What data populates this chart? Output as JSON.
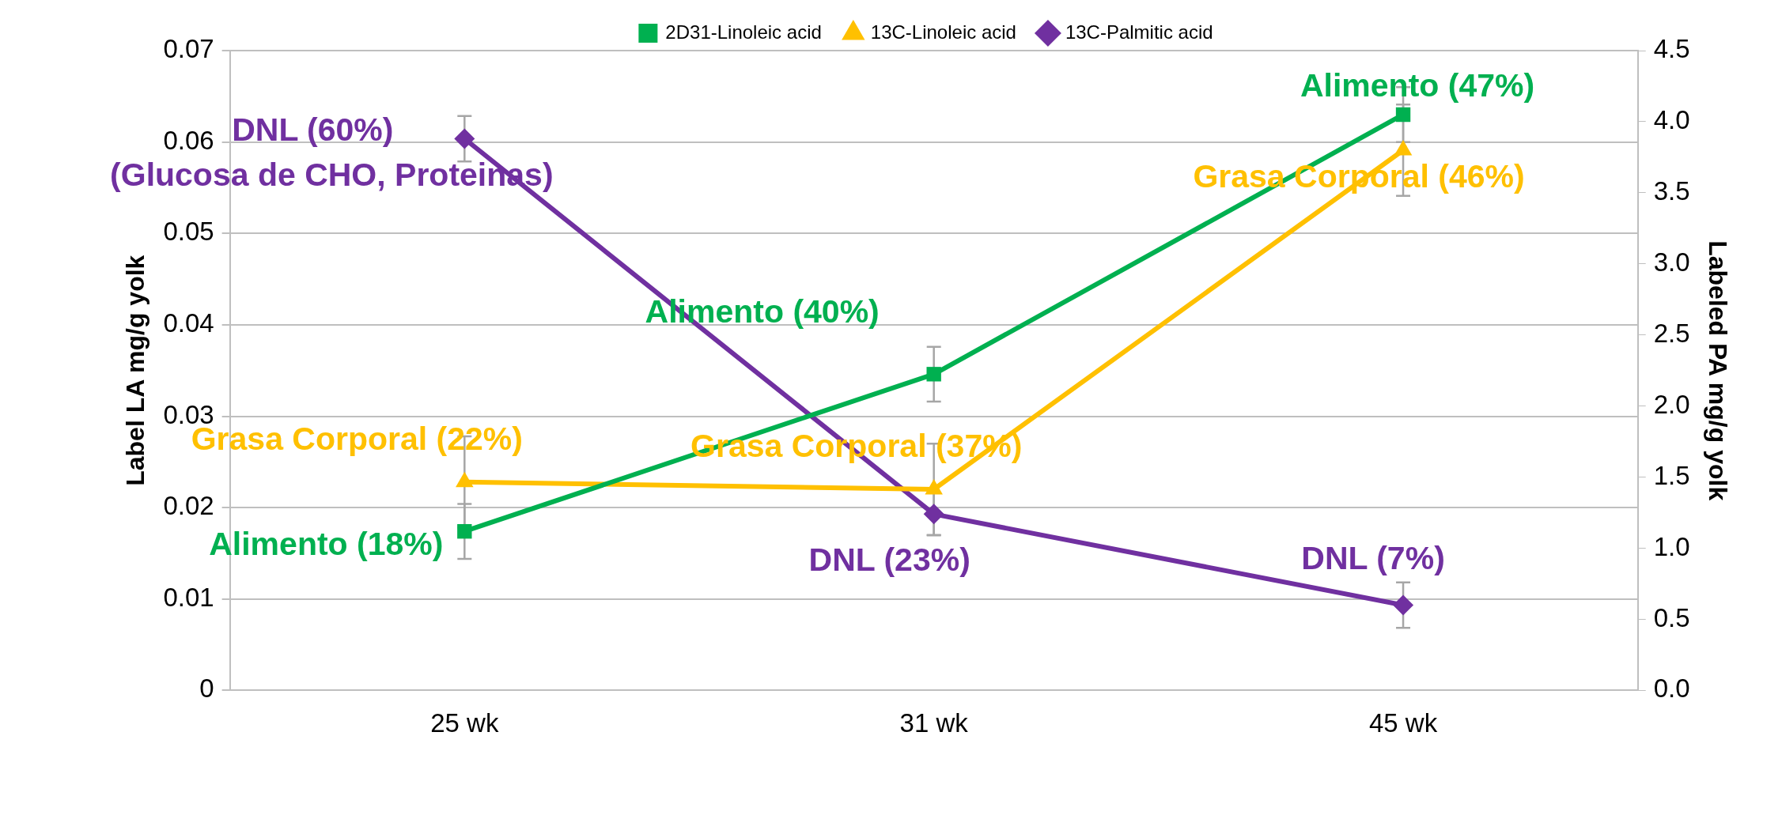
{
  "chart_data": {
    "type": "line",
    "categories": [
      "25 wk",
      "31 wk",
      "45 wk"
    ],
    "series": [
      {
        "name": "2D31-Linoleic acid",
        "color": "#00b050",
        "marker": "square",
        "values": [
          0.0174,
          0.0346,
          0.063
        ],
        "errors": [
          0.003,
          0.003,
          0.003
        ]
      },
      {
        "name": "13C-Linoleic acid",
        "color": "#ffc000",
        "marker": "triangle",
        "values": [
          0.0228,
          0.022,
          0.0591
        ],
        "errors": [
          0.005,
          0.005,
          0.005
        ]
      },
      {
        "name": "13C-Palmitic acid",
        "color": "#7030a0",
        "marker": "diamond",
        "axis": "y2",
        "values": [
          3.88,
          1.24,
          0.6
        ],
        "errors": [
          0.16,
          0.15,
          0.16
        ]
      }
    ],
    "ylabel": "Label LA mg/g yolk",
    "y2label": "Labeled PA mg/g yolk",
    "ylim": [
      0,
      0.07
    ],
    "yticks": [
      0,
      0.01,
      0.02,
      0.03,
      0.04,
      0.05,
      0.06,
      0.07
    ],
    "y2lim": [
      0,
      4.5
    ],
    "y2ticks": [
      {
        "value": 0,
        "label": "0.0"
      },
      0.5,
      {
        "value": 1,
        "label": "1.0"
      },
      1.5,
      {
        "value": 2,
        "label": "2.0"
      },
      2.5,
      {
        "value": 3,
        "label": "3.0"
      },
      3.5,
      {
        "value": 4,
        "label": "4.0"
      },
      4.5
    ],
    "grid": "y",
    "legend": "top",
    "line_style": "solid",
    "annotations": [
      {
        "text": "DNL (60%)",
        "x": "25 wk",
        "y": 0.0604
      },
      {
        "text": "(Glucosa de CHO, Proteinas)",
        "x": "25 wk",
        "y": 0.0604
      },
      {
        "text": "Grasa Corporal (22%)",
        "x": "25 wk",
        "y": 0.0228
      },
      {
        "text": "Alimento (18%)",
        "x": "25 wk",
        "y": 0.0174
      },
      {
        "text": "Alimento (40%)",
        "x": "31 wk",
        "y": 0.0346
      },
      {
        "text": "Grasa Corporal (37%)",
        "x": "31 wk",
        "y": 0.022
      },
      {
        "text": "DNL (23%)",
        "x": "31 wk",
        "y": 0.0193
      },
      {
        "text": "Alimento (47%)",
        "x": "45 wk",
        "y": 0.063
      },
      {
        "text": "Grasa Corporal (46%)",
        "x": "45 wk",
        "y": 0.0591
      },
      {
        "text": "DNL (7%)",
        "x": "45 wk",
        "y": 0.0093
      }
    ]
  }
}
